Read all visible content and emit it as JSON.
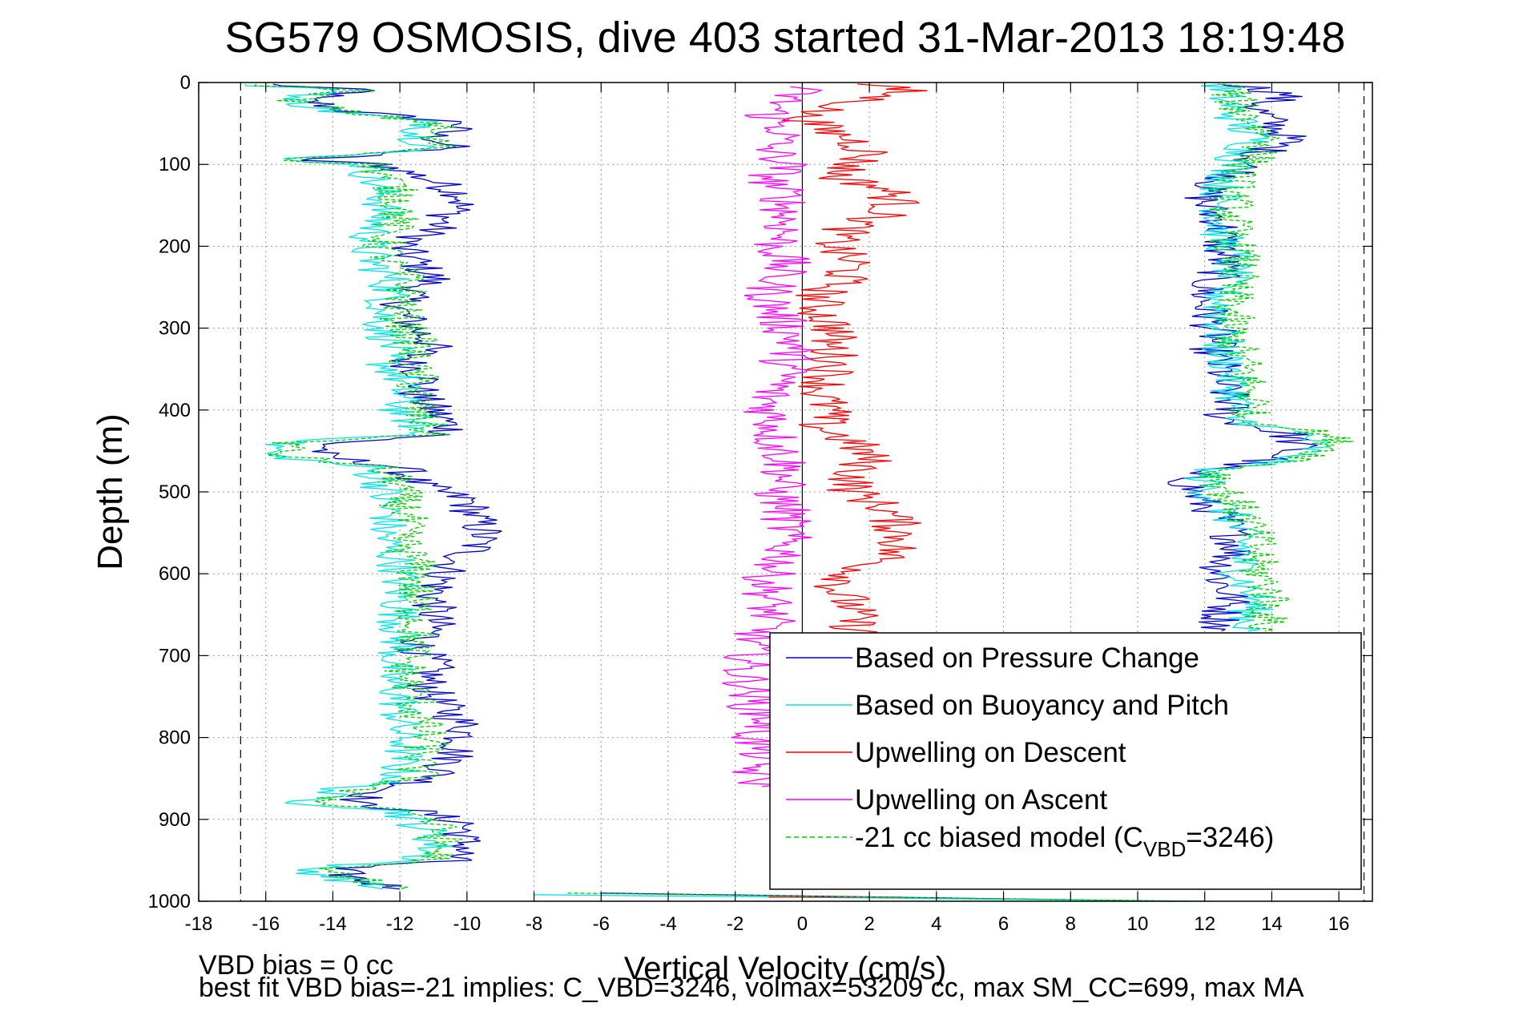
{
  "chart_data": {
    "type": "line",
    "title": "SG579 OSMOSIS, dive 403 started 31-Mar-2013 18:19:48",
    "xlabel": "Vertical Velocity (cm/s)",
    "ylabel": "Depth (m)",
    "xlim": [
      -18,
      17
    ],
    "ylim": [
      1000,
      0
    ],
    "y_reversed": true,
    "grid": true,
    "x_ticks": [
      -18,
      -16,
      -14,
      -12,
      -10,
      -8,
      -6,
      -4,
      -2,
      0,
      2,
      4,
      6,
      8,
      10,
      12,
      14,
      16
    ],
    "x_tick_labels": [
      "-18",
      "-16",
      "-14",
      "-12",
      "-10",
      "-8",
      "-6",
      "-4",
      "-2",
      "0",
      "2",
      "4",
      "6",
      "8",
      "10",
      "12",
      "14",
      "16"
    ],
    "y_ticks": [
      0,
      100,
      200,
      300,
      400,
      500,
      600,
      700,
      800,
      900,
      1000
    ],
    "y_tick_labels": [
      "0",
      "100",
      "200",
      "300",
      "400",
      "500",
      "600",
      "700",
      "800",
      "900",
      "1000"
    ],
    "reference_lines": {
      "zero_line_x": 0,
      "dashed_limits_x": [
        -16.75,
        16.75
      ]
    },
    "legend": {
      "placement": "bottom-right",
      "entries": [
        {
          "label": "Based on Pressure Change",
          "color": "#0000cc",
          "style": "solid"
        },
        {
          "label": "Based on Buoyancy and Pitch",
          "color": "#00e5e5",
          "style": "solid"
        },
        {
          "label": "Upwelling on Descent",
          "color": "#ff0000",
          "style": "solid"
        },
        {
          "label": "Upwelling on Ascent",
          "color": "#ff00ff",
          "style": "solid"
        },
        {
          "label_prefix": "-21 cc biased model (C",
          "label_sub": "VBD",
          "label_suffix": "=3246)",
          "color": "#00cc00",
          "style": "dashed"
        }
      ]
    },
    "series": [
      {
        "name": "Based on Pressure Change",
        "color": "#0000cc",
        "segments": [
          {
            "depth": [
              2,
              10,
              20,
              35,
              50,
              65,
              80,
              95,
              100,
              120,
              140,
              160,
              180,
              200,
              220,
              240,
              260,
              280,
              300,
              320,
              340,
              360,
              380,
              400,
              420,
              430,
              440,
              455,
              470,
              490,
              510,
              530,
              550,
              570,
              590,
              610,
              630,
              650,
              670,
              690,
              710,
              730,
              750,
              770,
              790,
              810,
              830,
              850,
              865,
              880,
              890,
              905,
              920,
              935,
              950,
              960,
              970,
              985
            ],
            "x": [
              -16,
              -13,
              -15,
              -13.5,
              -10,
              -11,
              -10.5,
              -15,
              -12.5,
              -11,
              -10,
              -10.5,
              -11,
              -12,
              -11.5,
              -11,
              -11.8,
              -12,
              -11.5,
              -11,
              -11.8,
              -11.2,
              -11.5,
              -11,
              -10.5,
              -10.5,
              -14,
              -14.5,
              -12,
              -11.5,
              -10,
              -9.8,
              -9.5,
              -9.8,
              -10.5,
              -10.8,
              -11,
              -11,
              -11,
              -11.5,
              -11,
              -11.2,
              -11,
              -10.5,
              -10,
              -10.2,
              -10.5,
              -11,
              -12.5,
              -13.5,
              -11.5,
              -10,
              -10.2,
              -10,
              -10.5,
              -14,
              -13.5,
              -12
            ]
          },
          {
            "depth": [
              2,
              15,
              30,
              50,
              70,
              90,
              110,
              130,
              150,
              170,
              190,
              210,
              230,
              250,
              270,
              290,
              310,
              330,
              350,
              370,
              390,
              410,
              430,
              445,
              460,
              475,
              490,
              510,
              530,
              550,
              570,
              590,
              610,
              630,
              650,
              670
            ],
            "x": [
              13,
              14.5,
              13.5,
              14,
              14.5,
              13.5,
              13,
              12,
              12,
              12.5,
              12.5,
              12.5,
              12.5,
              12,
              12,
              12.2,
              12.3,
              12.2,
              12.5,
              12.5,
              12.8,
              12.5,
              14.5,
              14.8,
              14,
              11.5,
              11.5,
              11.8,
              12.5,
              12.8,
              13,
              12.5,
              12.5,
              12.8,
              12.5,
              12.5
            ]
          },
          {
            "depth": [
              990,
              1000
            ],
            "x": [
              -6,
              11
            ]
          }
        ]
      },
      {
        "name": "Based on Buoyancy and Pitch",
        "color": "#00e5e5",
        "segments": [
          {
            "depth": [
              2,
              10,
              20,
              35,
              50,
              65,
              80,
              95,
              100,
              120,
              140,
              160,
              180,
              200,
              220,
              240,
              260,
              280,
              300,
              320,
              340,
              360,
              380,
              400,
              420,
              430,
              440,
              455,
              470,
              490,
              510,
              530,
              550,
              570,
              590,
              610,
              630,
              650,
              670,
              690,
              710,
              730,
              750,
              770,
              790,
              810,
              830,
              850,
              865,
              880,
              890,
              905,
              920,
              935,
              950,
              960,
              970,
              985
            ],
            "x": [
              -17,
              -13.5,
              -15.5,
              -14,
              -11,
              -11.5,
              -11,
              -15.5,
              -13,
              -12.8,
              -12.5,
              -12.5,
              -12.8,
              -13,
              -12.8,
              -12.3,
              -12.3,
              -12.5,
              -12.5,
              -12.2,
              -12.5,
              -12,
              -12,
              -12,
              -11.5,
              -11.5,
              -15.5,
              -16,
              -13,
              -12.5,
              -12.5,
              -12.3,
              -12.5,
              -12.3,
              -12,
              -12,
              -12,
              -12,
              -12,
              -12,
              -12.2,
              -12.3,
              -12,
              -12,
              -12,
              -11.8,
              -12,
              -12,
              -14,
              -14.8,
              -12,
              -11.5,
              -11,
              -11,
              -11.5,
              -15,
              -14,
              -12.5
            ]
          },
          {
            "depth": [
              2,
              15,
              30,
              50,
              70,
              90,
              110,
              130,
              150,
              170,
              190,
              210,
              230,
              250,
              270,
              290,
              310,
              330,
              350,
              370,
              390,
              410,
              430,
              445,
              460,
              475,
              490,
              510,
              530,
              550,
              570,
              590,
              610,
              630,
              650,
              670
            ],
            "x": [
              12.5,
              12.5,
              12.8,
              13,
              13.5,
              13,
              12.8,
              12.5,
              12.5,
              12.5,
              12.5,
              12.8,
              12.8,
              12.5,
              12.5,
              12.5,
              12.5,
              12.5,
              12.8,
              12.8,
              13,
              12.8,
              15,
              15.3,
              14.5,
              12,
              12,
              12.3,
              12.8,
              13,
              13.2,
              13,
              13.2,
              13.5,
              13.3,
              13.3
            ]
          },
          {
            "depth": [
              992,
              1000
            ],
            "x": [
              -8,
              12
            ]
          }
        ]
      },
      {
        "name": "Upwelling on Descent",
        "color": "#ff0000",
        "segments": [
          {
            "depth": [
              2,
              10,
              25,
              40,
              55,
              70,
              85,
              100,
              115,
              130,
              145,
              160,
              175,
              190,
              205,
              220,
              240,
              260,
              280,
              300,
              320,
              340,
              360,
              380,
              400,
              420,
              440,
              460,
              480,
              500,
              520,
              540,
              560,
              580,
              600,
              620,
              640,
              660,
              680
            ],
            "x": [
              2,
              3,
              1.5,
              0,
              0.5,
              1.5,
              2,
              1.5,
              1,
              2.5,
              2.8,
              2.5,
              1.5,
              1,
              1,
              1.5,
              1.2,
              0.5,
              0.5,
              1,
              0.8,
              1,
              0.8,
              0.5,
              0.8,
              0.5,
              1.5,
              2,
              1.5,
              1.5,
              2.5,
              2.8,
              3,
              2.5,
              1.5,
              1,
              1.5,
              1.5,
              1.8
            ]
          },
          {
            "depth": [
              995,
              995
            ],
            "x": [
              -1,
              3
            ]
          }
        ]
      },
      {
        "name": "Upwelling on Ascent",
        "color": "#ff00ff",
        "segments": [
          {
            "depth": [
              5,
              20,
              40,
              60,
              80,
              100,
              120,
              140,
              160,
              180,
              200,
              220,
              240,
              260,
              280,
              300,
              320,
              340,
              360,
              380,
              400,
              420,
              440,
              460,
              480,
              500,
              520,
              540,
              560,
              580,
              600,
              620,
              640,
              660,
              680,
              700,
              720,
              740,
              760,
              780,
              800,
              820,
              840,
              860
            ],
            "x": [
              0,
              -0.5,
              -1,
              -0.5,
              -1,
              -0.5,
              -1,
              -0.5,
              -0.5,
              -0.5,
              -0.8,
              -0.5,
              -0.8,
              -1,
              -0.8,
              -0.5,
              -0.2,
              -0.5,
              -0.5,
              -1,
              -1,
              -0.8,
              -0.8,
              -0.5,
              -0.5,
              -0.8,
              -0.5,
              -0.5,
              -0.5,
              -0.5,
              -1,
              -1,
              -1,
              -1,
              -1.5,
              -1.5,
              -1.8,
              -1.5,
              -1.5,
              -1,
              -1.5,
              -1.2,
              -1.5,
              -1.2
            ]
          }
        ]
      },
      {
        "name": "-21 cc biased model (CVBD=3246)",
        "color": "#00cc00",
        "dashed": true,
        "segments": [
          {
            "depth": [
              2,
              10,
              20,
              35,
              50,
              65,
              80,
              95,
              100,
              120,
              140,
              160,
              180,
              200,
              220,
              240,
              260,
              280,
              300,
              320,
              340,
              360,
              380,
              400,
              420,
              430,
              440,
              455,
              470,
              490,
              510,
              530,
              550,
              570,
              590,
              610,
              630,
              650,
              670,
              690,
              710,
              730,
              750,
              770,
              790,
              810,
              830,
              850,
              865,
              880,
              890,
              905,
              920,
              935,
              950,
              960,
              970,
              985
            ],
            "x": [
              -16.5,
              -13.3,
              -15.2,
              -13.8,
              -10.8,
              -11.2,
              -10.8,
              -15.3,
              -12.8,
              -12.3,
              -12,
              -12,
              -12.3,
              -12.5,
              -12.3,
              -11.8,
              -11.8,
              -12,
              -11.8,
              -11.5,
              -11.8,
              -11.5,
              -11.5,
              -11.5,
              -11.2,
              -11.2,
              -15.2,
              -15.6,
              -12.6,
              -12,
              -12,
              -11.8,
              -12,
              -11.8,
              -11.5,
              -11.5,
              -11.6,
              -11.5,
              -11.5,
              -11.6,
              -11.8,
              -11.8,
              -11.5,
              -11.5,
              -11.3,
              -11.2,
              -11.5,
              -11.5,
              -13.5,
              -14.3,
              -11.5,
              -11,
              -10.8,
              -10.8,
              -11,
              -14.5,
              -13.5,
              -12
            ]
          },
          {
            "depth": [
              2,
              15,
              30,
              50,
              70,
              90,
              110,
              130,
              150,
              170,
              190,
              210,
              230,
              250,
              270,
              290,
              310,
              330,
              350,
              370,
              390,
              410,
              430,
              445,
              460,
              475,
              490,
              510,
              530,
              550,
              570,
              590,
              610,
              630,
              650,
              670
            ],
            "x": [
              12.8,
              12.8,
              13,
              13.5,
              14,
              13.5,
              13,
              12.8,
              12.8,
              12.8,
              12.8,
              13,
              13,
              12.8,
              12.8,
              12.8,
              12.8,
              13,
              13.2,
              13.3,
              13.5,
              13.2,
              15.6,
              16,
              15,
              12.4,
              12.5,
              12.8,
              13.2,
              13.4,
              13.6,
              13.5,
              13.8,
              14,
              13.8,
              13.8
            ]
          },
          {
            "depth": [
              990,
              1000
            ],
            "x": [
              -7,
              11.5
            ]
          }
        ]
      }
    ]
  },
  "footer": {
    "line1": "VBD bias = 0 cc",
    "line2": "best fit VBD bias=-21 implies: C_VBD=3246, volmax=53209 cc, max SM_CC=699, max MA"
  }
}
